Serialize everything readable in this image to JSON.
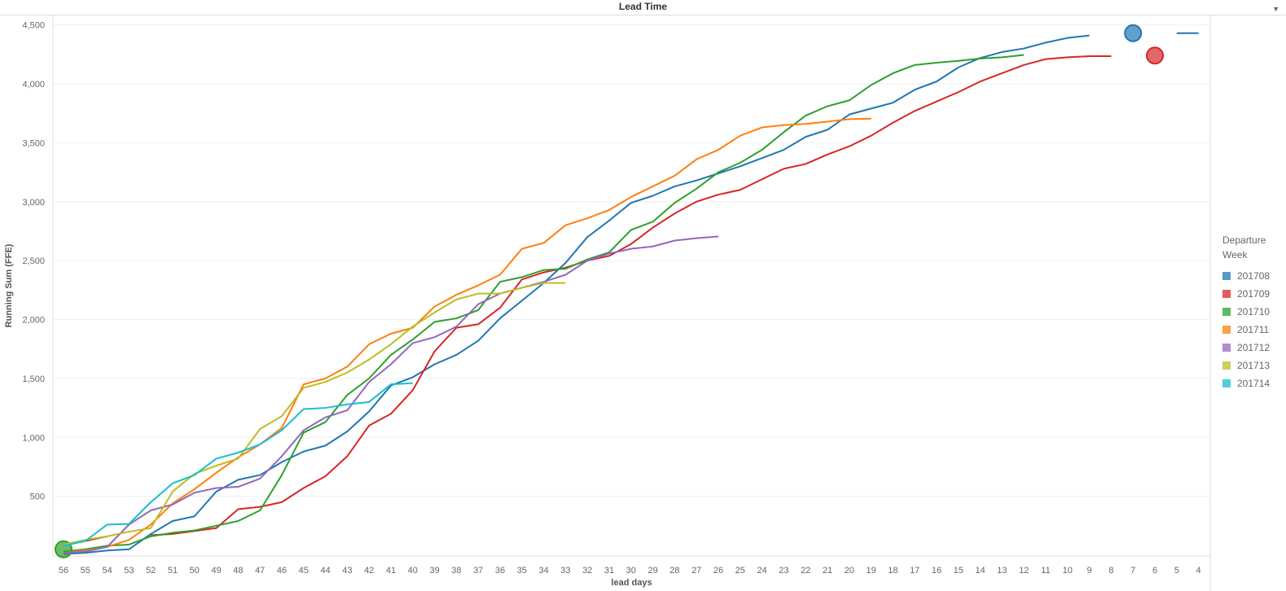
{
  "header": {
    "title": "Lead Time",
    "menu_icon": "dropdown-triangle-icon"
  },
  "chart_data": {
    "type": "line",
    "title": "Lead Time",
    "xlabel": "lead days",
    "ylabel": "Running Sum (FFE)",
    "ylim": [
      0,
      4600
    ],
    "yticks": [
      500,
      1000,
      1500,
      2000,
      2500,
      3000,
      3500,
      4000,
      4500
    ],
    "ytick_labels": [
      "500",
      "1,000",
      "1,500",
      "2,000",
      "2,500",
      "3,000",
      "3,500",
      "4,000",
      "4,500"
    ],
    "categories": [
      56,
      55,
      54,
      53,
      52,
      51,
      50,
      49,
      48,
      47,
      46,
      45,
      44,
      43,
      42,
      41,
      40,
      39,
      38,
      37,
      36,
      35,
      34,
      33,
      32,
      31,
      30,
      29,
      28,
      27,
      26,
      25,
      24,
      23,
      22,
      21,
      20,
      19,
      18,
      17,
      16,
      15,
      14,
      13,
      12,
      11,
      10,
      9,
      8,
      7,
      6,
      5,
      4
    ],
    "x_reversed": true,
    "grid": "horizontal",
    "legend": {
      "title": "Departure Week",
      "placement": "right"
    },
    "series": [
      {
        "name": "201708",
        "color": "#1f77b4",
        "points": [
          [
            56,
            10
          ],
          [
            55,
            20
          ],
          [
            54,
            40
          ],
          [
            53,
            50
          ],
          [
            52,
            180
          ],
          [
            51,
            290
          ],
          [
            50,
            330
          ],
          [
            49,
            540
          ],
          [
            48,
            640
          ],
          [
            47,
            680
          ],
          [
            46,
            790
          ],
          [
            45,
            880
          ],
          [
            44,
            930
          ],
          [
            43,
            1050
          ],
          [
            42,
            1220
          ],
          [
            41,
            1440
          ],
          [
            40,
            1510
          ],
          [
            39,
            1620
          ],
          [
            38,
            1700
          ],
          [
            37,
            1820
          ],
          [
            36,
            2010
          ],
          [
            35,
            2160
          ],
          [
            34,
            2310
          ],
          [
            33,
            2480
          ],
          [
            32,
            2700
          ],
          [
            31,
            2840
          ],
          [
            30,
            2990
          ],
          [
            29,
            3050
          ],
          [
            28,
            3130
          ],
          [
            27,
            3180
          ],
          [
            26,
            3240
          ],
          [
            25,
            3300
          ],
          [
            24,
            3370
          ],
          [
            23,
            3440
          ],
          [
            22,
            3550
          ],
          [
            21,
            3610
          ],
          [
            20,
            3740
          ],
          [
            19,
            3790
          ],
          [
            18,
            3840
          ],
          [
            17,
            3950
          ],
          [
            16,
            4020
          ],
          [
            15,
            4140
          ],
          [
            14,
            4220
          ],
          [
            13,
            4270
          ],
          [
            12,
            4300
          ],
          [
            11,
            4350
          ],
          [
            10,
            4390
          ],
          [
            9,
            4410
          ]
        ],
        "segments": [
          [
            [
              5,
              4430
            ],
            [
              4,
              4430
            ]
          ]
        ],
        "markers": [
          [
            7,
            4430
          ]
        ]
      },
      {
        "name": "201709",
        "color": "#d62728",
        "points": [
          [
            55,
            120
          ],
          [
            54,
            160
          ],
          [
            53,
            null
          ],
          [
            52,
            170
          ],
          [
            51,
            180
          ],
          [
            50,
            205
          ],
          [
            49,
            230
          ],
          [
            48,
            390
          ],
          [
            47,
            410
          ],
          [
            46,
            450
          ],
          [
            45,
            570
          ],
          [
            44,
            670
          ],
          [
            43,
            840
          ],
          [
            42,
            1100
          ],
          [
            41,
            1200
          ],
          [
            40,
            1400
          ],
          [
            39,
            1730
          ],
          [
            38,
            1930
          ],
          [
            37,
            1960
          ],
          [
            36,
            2100
          ],
          [
            35,
            2340
          ],
          [
            34,
            2400
          ],
          [
            33,
            2440
          ],
          [
            32,
            2500
          ],
          [
            31,
            2540
          ],
          [
            30,
            2640
          ],
          [
            29,
            2780
          ],
          [
            28,
            2900
          ],
          [
            27,
            3000
          ],
          [
            26,
            3060
          ],
          [
            25,
            3100
          ],
          [
            24,
            3190
          ],
          [
            23,
            3280
          ],
          [
            22,
            3320
          ],
          [
            21,
            3400
          ],
          [
            20,
            3470
          ],
          [
            19,
            3560
          ],
          [
            18,
            3670
          ],
          [
            17,
            3770
          ],
          [
            16,
            3850
          ],
          [
            15,
            3930
          ],
          [
            14,
            4020
          ],
          [
            13,
            4090
          ],
          [
            12,
            4160
          ],
          [
            11,
            4210
          ],
          [
            10,
            4225
          ],
          [
            9,
            4235
          ],
          [
            8,
            4235
          ]
        ],
        "segments": [],
        "markers": [
          [
            6,
            4240
          ]
        ]
      },
      {
        "name": "201710",
        "color": "#2ca02c",
        "points": [
          [
            56,
            30
          ],
          [
            55,
            50
          ],
          [
            54,
            80
          ],
          [
            53,
            90
          ],
          [
            52,
            160
          ],
          [
            51,
            190
          ],
          [
            50,
            210
          ],
          [
            49,
            250
          ],
          [
            48,
            290
          ],
          [
            47,
            380
          ],
          [
            46,
            680
          ],
          [
            45,
            1040
          ],
          [
            44,
            1130
          ],
          [
            43,
            1360
          ],
          [
            42,
            1500
          ],
          [
            41,
            1700
          ],
          [
            40,
            1830
          ],
          [
            39,
            1980
          ],
          [
            38,
            2010
          ],
          [
            37,
            2080
          ],
          [
            36,
            2320
          ],
          [
            35,
            2360
          ],
          [
            34,
            2420
          ],
          [
            33,
            2430
          ],
          [
            32,
            2510
          ],
          [
            31,
            2570
          ],
          [
            30,
            2760
          ],
          [
            29,
            2830
          ],
          [
            28,
            2990
          ],
          [
            27,
            3110
          ],
          [
            26,
            3250
          ],
          [
            25,
            3330
          ],
          [
            24,
            3440
          ],
          [
            23,
            3590
          ],
          [
            22,
            3730
          ],
          [
            21,
            3810
          ],
          [
            20,
            3860
          ],
          [
            19,
            3990
          ],
          [
            18,
            4090
          ],
          [
            17,
            4160
          ],
          [
            16,
            4180
          ],
          [
            15,
            4195
          ],
          [
            14,
            4215
          ],
          [
            13,
            4225
          ],
          [
            12,
            4245
          ]
        ],
        "segments": [],
        "markers": [
          [
            56,
            50
          ]
        ]
      },
      {
        "name": "201711",
        "color": "#ff7f0e",
        "points": [
          [
            56,
            20
          ],
          [
            55,
            40
          ],
          [
            54,
            70
          ],
          [
            53,
            130
          ],
          [
            52,
            260
          ],
          [
            51,
            440
          ],
          [
            50,
            560
          ],
          [
            49,
            700
          ],
          [
            48,
            830
          ],
          [
            47,
            940
          ],
          [
            46,
            1080
          ],
          [
            45,
            1450
          ],
          [
            44,
            1500
          ],
          [
            43,
            1600
          ],
          [
            42,
            1790
          ],
          [
            41,
            1880
          ],
          [
            40,
            1930
          ],
          [
            39,
            2110
          ],
          [
            38,
            2210
          ],
          [
            37,
            2290
          ],
          [
            36,
            2380
          ],
          [
            35,
            2600
          ],
          [
            34,
            2650
          ],
          [
            33,
            2800
          ],
          [
            32,
            2860
          ],
          [
            31,
            2930
          ],
          [
            30,
            3040
          ],
          [
            29,
            3130
          ],
          [
            28,
            3220
          ],
          [
            27,
            3360
          ],
          [
            26,
            3440
          ],
          [
            25,
            3560
          ],
          [
            24,
            3630
          ],
          [
            23,
            3650
          ],
          [
            22,
            3660
          ],
          [
            21,
            3680
          ],
          [
            20,
            3700
          ],
          [
            19,
            3705
          ]
        ],
        "segments": [],
        "markers": []
      },
      {
        "name": "201712",
        "color": "#9467bd",
        "points": [
          [
            56,
            20
          ],
          [
            55,
            30
          ],
          [
            54,
            70
          ],
          [
            53,
            260
          ],
          [
            52,
            380
          ],
          [
            51,
            430
          ],
          [
            50,
            530
          ],
          [
            49,
            570
          ],
          [
            48,
            580
          ],
          [
            47,
            650
          ],
          [
            46,
            840
          ],
          [
            45,
            1060
          ],
          [
            44,
            1170
          ],
          [
            43,
            1230
          ],
          [
            42,
            1470
          ],
          [
            41,
            1620
          ],
          [
            40,
            1800
          ],
          [
            39,
            1850
          ],
          [
            38,
            1940
          ],
          [
            37,
            2130
          ],
          [
            36,
            2220
          ],
          [
            35,
            2270
          ],
          [
            34,
            2320
          ],
          [
            33,
            2380
          ],
          [
            32,
            2500
          ],
          [
            31,
            2560
          ],
          [
            30,
            2600
          ],
          [
            29,
            2620
          ],
          [
            28,
            2670
          ],
          [
            27,
            2690
          ],
          [
            26,
            2705
          ]
        ],
        "segments": [],
        "markers": []
      },
      {
        "name": "201713",
        "color": "#bcbd22",
        "points": [
          [
            56,
            90
          ],
          [
            55,
            130
          ],
          [
            54,
            160
          ],
          [
            53,
            200
          ],
          [
            52,
            230
          ],
          [
            51,
            540
          ],
          [
            50,
            690
          ],
          [
            49,
            760
          ],
          [
            48,
            820
          ],
          [
            47,
            1070
          ],
          [
            46,
            1180
          ],
          [
            45,
            1420
          ],
          [
            44,
            1470
          ],
          [
            43,
            1550
          ],
          [
            42,
            1660
          ],
          [
            41,
            1790
          ],
          [
            40,
            1940
          ],
          [
            39,
            2060
          ],
          [
            38,
            2170
          ],
          [
            37,
            2220
          ],
          [
            36,
            2220
          ],
          [
            35,
            2270
          ],
          [
            34,
            2310
          ],
          [
            33,
            2310
          ]
        ],
        "segments": [],
        "markers": []
      },
      {
        "name": "201714",
        "color": "#17becf",
        "points": [
          [
            56,
            80
          ],
          [
            55,
            120
          ],
          [
            54,
            260
          ],
          [
            53,
            265
          ],
          [
            52,
            450
          ],
          [
            51,
            610
          ],
          [
            50,
            680
          ],
          [
            49,
            820
          ],
          [
            48,
            870
          ],
          [
            47,
            940
          ],
          [
            46,
            1060
          ],
          [
            45,
            1240
          ],
          [
            44,
            1250
          ],
          [
            43,
            1280
          ],
          [
            42,
            1300
          ],
          [
            41,
            1450
          ],
          [
            40,
            1460
          ]
        ],
        "segments": [],
        "markers": []
      }
    ]
  }
}
